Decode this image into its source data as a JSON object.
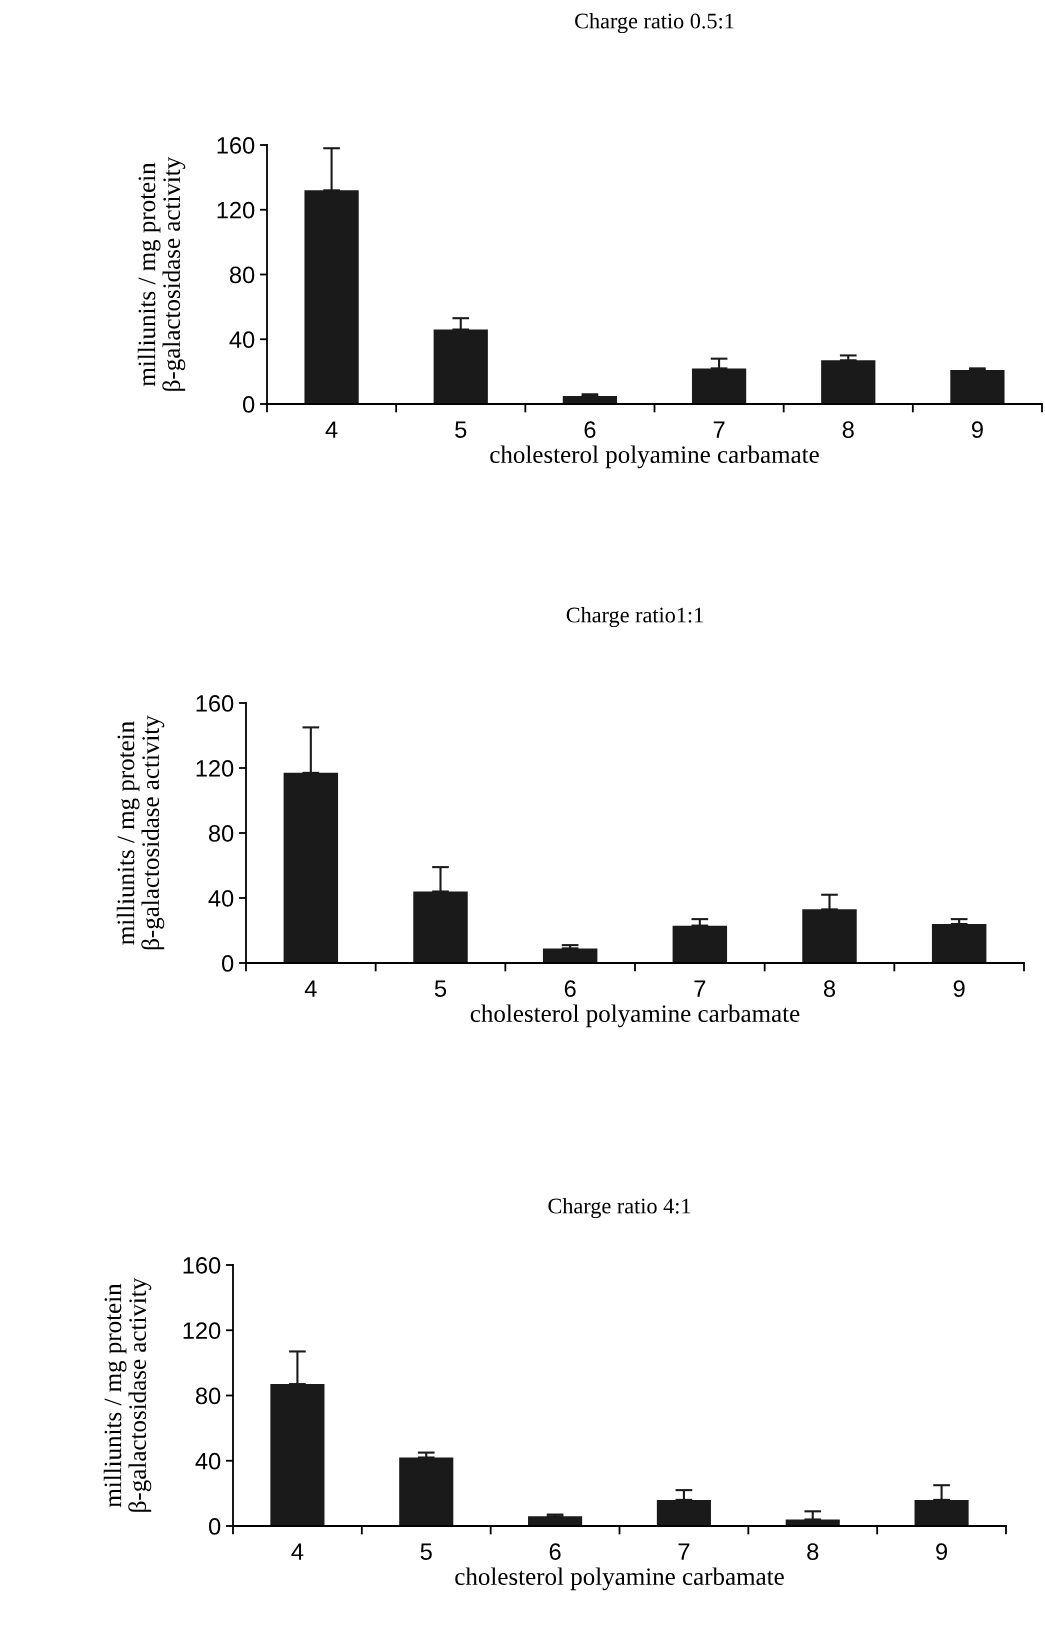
{
  "chart_data": [
    {
      "type": "bar",
      "title": "Charge ratio 0.5:1",
      "xlabel": "cholesterol polyamine carbamate",
      "ylabel": "milliunits / mg protein\nβ-galactosidase activity",
      "categories": [
        "4",
        "5",
        "6",
        "7",
        "8",
        "9"
      ],
      "values": [
        132,
        46,
        5,
        22,
        27,
        21
      ],
      "errors": [
        [
          132,
          158
        ],
        [
          46,
          53
        ],
        [
          5,
          6
        ],
        [
          22,
          28
        ],
        [
          27,
          30
        ],
        [
          21,
          22
        ]
      ],
      "color": "#1a1a1a",
      "ylim": [
        0,
        160
      ],
      "yticks": [
        0,
        40,
        80,
        120,
        160
      ],
      "grid": false
    },
    {
      "type": "bar",
      "title": "Charge ratio1:1",
      "xlabel": "cholesterol polyamine carbamate",
      "ylabel": "milliunits / mg protein\nβ-galactosidase activity",
      "categories": [
        "4",
        "5",
        "6",
        "7",
        "8",
        "9"
      ],
      "values": [
        117,
        44,
        9,
        23,
        33,
        24
      ],
      "errors": [
        [
          117,
          145
        ],
        [
          44,
          59
        ],
        [
          9,
          11
        ],
        [
          23,
          27
        ],
        [
          33,
          42
        ],
        [
          24,
          27
        ]
      ],
      "color": "#1a1a1a",
      "ylim": [
        0,
        160
      ],
      "yticks": [
        0,
        40,
        80,
        120,
        160
      ],
      "grid": false
    },
    {
      "type": "bar",
      "title": "Charge ratio 4:1",
      "xlabel": "cholesterol polyamine carbamate",
      "ylabel": "milliunits / mg protein\nβ-galactosidase activity",
      "categories": [
        "4",
        "5",
        "6",
        "7",
        "8",
        "9"
      ],
      "values": [
        87,
        42,
        6,
        16,
        4,
        16
      ],
      "errors": [
        [
          87,
          107
        ],
        [
          42,
          45
        ],
        [
          6,
          7
        ],
        [
          16,
          22
        ],
        [
          4,
          9
        ],
        [
          16,
          25
        ]
      ],
      "color": "#1a1a1a",
      "ylim": [
        0,
        160
      ],
      "yticks": [
        0,
        40,
        80,
        120,
        160
      ],
      "grid": false
    }
  ]
}
